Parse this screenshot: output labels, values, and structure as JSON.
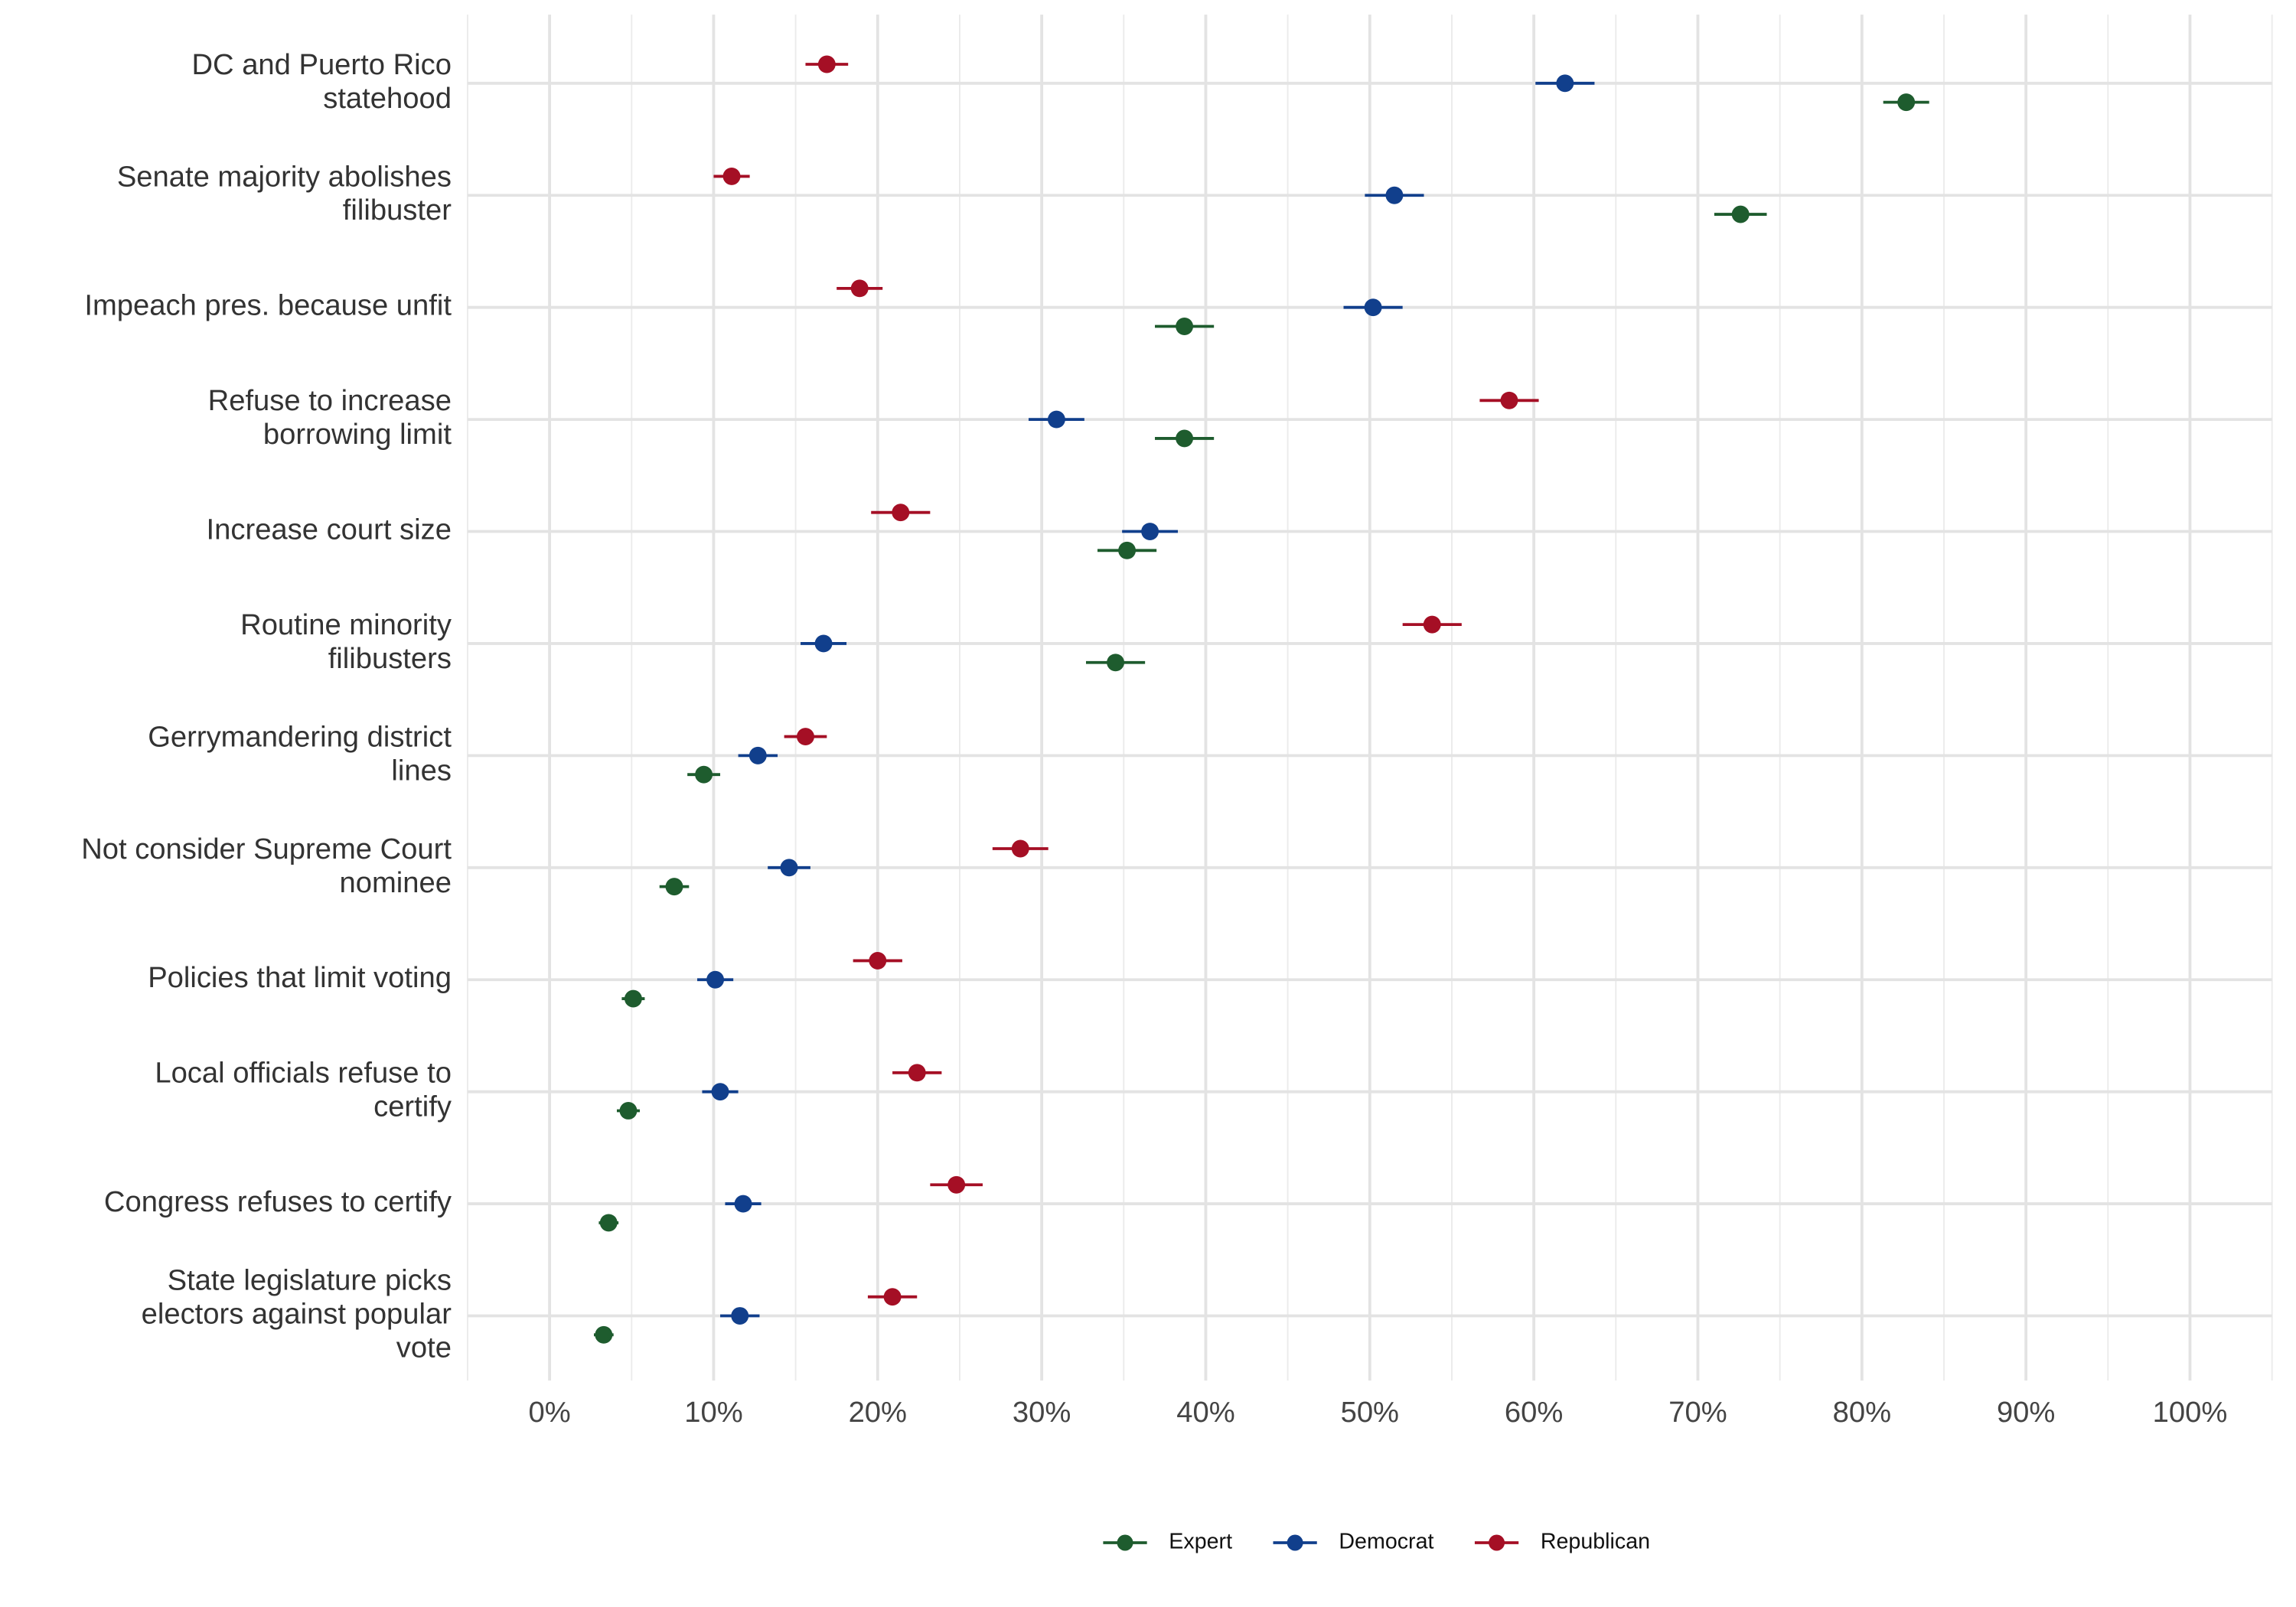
{
  "chart_data": {
    "type": "dot-errorbar",
    "categories": [
      "DC and Puerto Rico\nstatehood",
      "Senate majority abolishes\nfilibuster",
      "Impeach pres. because unfit",
      "Refuse to increase\nborrowing limit",
      "Increase court size",
      "Routine minority\nfilibusters",
      "Gerrymandering district\nlines",
      "Not consider Supreme Court\nnominee",
      "Policies that limit voting",
      "Local officials refuse to\ncertify",
      "Congress refuses to certify",
      "State legislature picks\nelectors against popular\nvote"
    ],
    "series": [
      {
        "name": "Expert",
        "color": "#1e5c2e",
        "values": [
          82.7,
          72.6,
          38.7,
          38.7,
          35.2,
          34.5,
          9.4,
          7.6,
          5.1,
          4.8,
          3.6,
          3.3
        ],
        "errors": [
          1.4,
          1.6,
          1.8,
          1.8,
          1.8,
          1.8,
          1.0,
          0.9,
          0.7,
          0.7,
          0.6,
          0.6
        ]
      },
      {
        "name": "Democrat",
        "color": "#113f8c",
        "values": [
          61.9,
          51.5,
          50.2,
          30.9,
          36.6,
          16.7,
          12.7,
          14.6,
          10.1,
          10.4,
          11.8,
          11.6
        ],
        "errors": [
          1.8,
          1.8,
          1.8,
          1.7,
          1.7,
          1.4,
          1.2,
          1.3,
          1.1,
          1.1,
          1.1,
          1.2
        ]
      },
      {
        "name": "Republican",
        "color": "#a50f25",
        "values": [
          16.9,
          11.1,
          18.9,
          58.5,
          21.4,
          53.8,
          15.6,
          28.7,
          20.0,
          22.4,
          24.8,
          20.9
        ],
        "errors": [
          1.3,
          1.1,
          1.4,
          1.8,
          1.8,
          1.8,
          1.3,
          1.7,
          1.5,
          1.5,
          1.6,
          1.5
        ]
      }
    ],
    "xlim": [
      -5,
      105
    ],
    "xticks": [
      {
        "value": 0,
        "label": "0%"
      },
      {
        "value": 10,
        "label": "10%"
      },
      {
        "value": 20,
        "label": "20%"
      },
      {
        "value": 30,
        "label": "30%"
      },
      {
        "value": 40,
        "label": "40%"
      },
      {
        "value": 50,
        "label": "50%"
      },
      {
        "value": 60,
        "label": "60%"
      },
      {
        "value": 70,
        "label": "70%"
      },
      {
        "value": 80,
        "label": "80%"
      },
      {
        "value": 90,
        "label": "90%"
      },
      {
        "value": 100,
        "label": "100%"
      }
    ],
    "grid": true,
    "legend": "bottom"
  }
}
